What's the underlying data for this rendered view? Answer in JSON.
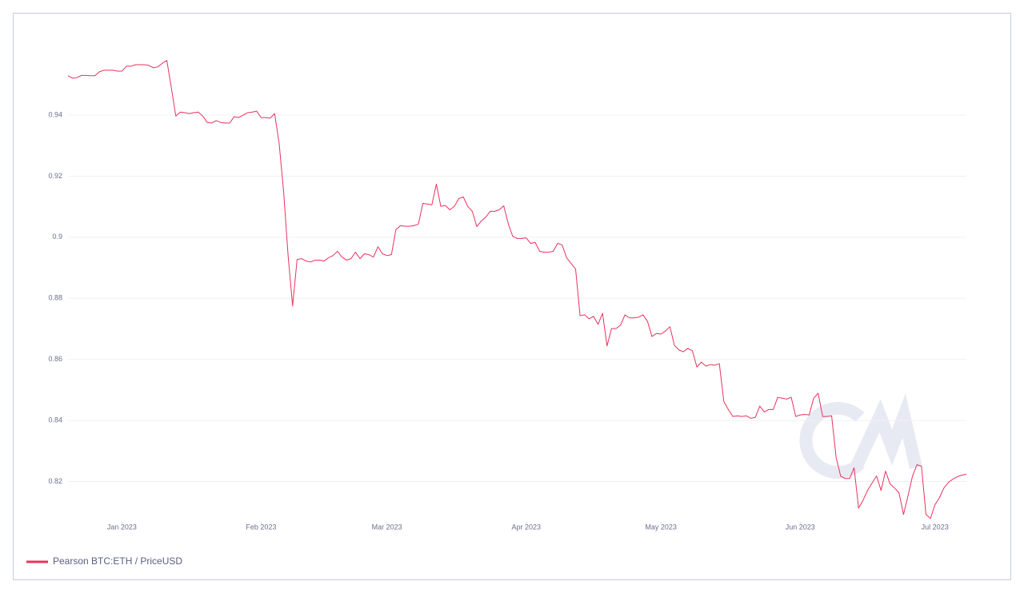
{
  "chart_data": {
    "type": "line",
    "grid": true,
    "legend": "bottom-left",
    "ylim": [
      0.806,
      0.962
    ],
    "yticks": [
      0.82,
      0.84,
      0.86,
      0.88,
      0.9,
      0.92,
      0.94
    ],
    "xlim": [
      0,
      200
    ],
    "xticks": [
      {
        "value": 12,
        "label": "Jan 2023"
      },
      {
        "value": 43,
        "label": "Feb 2023"
      },
      {
        "value": 71,
        "label": "Mar 2023"
      },
      {
        "value": 102,
        "label": "Apr 2023"
      },
      {
        "value": 132,
        "label": "May 2023"
      },
      {
        "value": 163,
        "label": "Jun 2023"
      },
      {
        "value": 193,
        "label": "Jul 2023"
      }
    ],
    "series": [
      {
        "name": "Pearson BTC:ETH / PriceUSD",
        "color": "#e8335d",
        "values": [
          0.9529,
          0.9521,
          0.9523,
          0.953,
          0.953,
          0.9529,
          0.9529,
          0.9542,
          0.9547,
          0.9547,
          0.9547,
          0.9544,
          0.9544,
          0.956,
          0.956,
          0.9565,
          0.9565,
          0.9565,
          0.9563,
          0.9555,
          0.9558,
          0.957,
          0.9579,
          0.949,
          0.9397,
          0.941,
          0.9408,
          0.9405,
          0.9408,
          0.941,
          0.9397,
          0.9376,
          0.9374,
          0.9382,
          0.9376,
          0.9374,
          0.9374,
          0.9395,
          0.9392,
          0.94,
          0.9408,
          0.941,
          0.9413,
          0.9392,
          0.9392,
          0.939,
          0.9405,
          0.9308,
          0.915,
          0.894,
          0.8775,
          0.8927,
          0.893,
          0.8922,
          0.8919,
          0.8925,
          0.8925,
          0.8922,
          0.8933,
          0.894,
          0.8954,
          0.8935,
          0.8925,
          0.893,
          0.8951,
          0.893,
          0.8946,
          0.8943,
          0.8935,
          0.8969,
          0.8946,
          0.894,
          0.8943,
          0.9025,
          0.9038,
          0.9036,
          0.9036,
          0.9038,
          0.9043,
          0.9111,
          0.9109,
          0.9106,
          0.9174,
          0.9101,
          0.9104,
          0.909,
          0.9101,
          0.9127,
          0.9132,
          0.9101,
          0.9085,
          0.9035,
          0.9053,
          0.9066,
          0.9085,
          0.9085,
          0.909,
          0.9103,
          0.9045,
          0.9003,
          0.8996,
          0.8996,
          0.8998,
          0.898,
          0.8983,
          0.8954,
          0.8951,
          0.8951,
          0.8954,
          0.898,
          0.8975,
          0.8933,
          0.8914,
          0.8896,
          0.8743,
          0.8746,
          0.8733,
          0.8741,
          0.8715,
          0.8751,
          0.8644,
          0.8701,
          0.8701,
          0.8712,
          0.8746,
          0.8736,
          0.8736,
          0.8738,
          0.8746,
          0.8725,
          0.8675,
          0.8685,
          0.8683,
          0.8693,
          0.8707,
          0.8646,
          0.8631,
          0.8625,
          0.8636,
          0.8628,
          0.8575,
          0.8591,
          0.8578,
          0.8583,
          0.8581,
          0.8586,
          0.8462,
          0.8436,
          0.8413,
          0.8415,
          0.8413,
          0.8415,
          0.8407,
          0.841,
          0.8447,
          0.8428,
          0.8436,
          0.8436,
          0.8476,
          0.8473,
          0.847,
          0.8476,
          0.8413,
          0.8418,
          0.842,
          0.8418,
          0.8473,
          0.8489,
          0.8413,
          0.8413,
          0.8415,
          0.8279,
          0.8218,
          0.821,
          0.821,
          0.8245,
          0.8113,
          0.8139,
          0.8171,
          0.8195,
          0.8218,
          0.8171,
          0.8234,
          0.8192,
          0.8179,
          0.8163,
          0.8092,
          0.8153,
          0.8218,
          0.8255,
          0.825,
          0.8092,
          0.8079,
          0.8124,
          0.8147,
          0.8179,
          0.8197,
          0.8208,
          0.8216,
          0.8221,
          0.8224
        ]
      }
    ]
  }
}
